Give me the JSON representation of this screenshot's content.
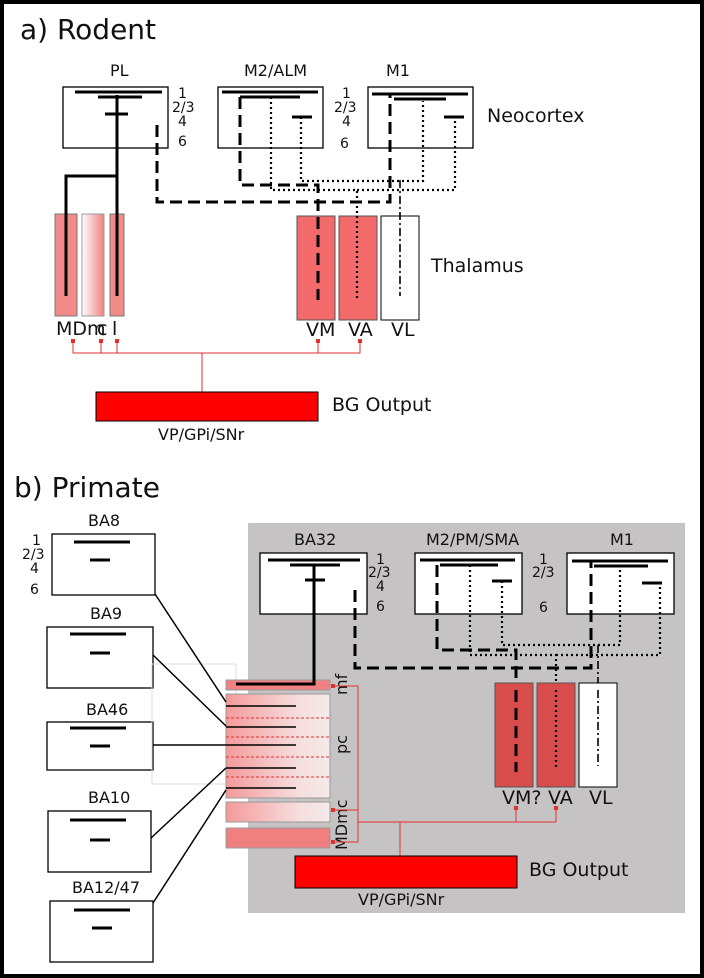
{
  "panels": {
    "rodent": {
      "title": "a) Rodent",
      "areas": [
        "PL",
        "M2/ALM",
        "M1"
      ],
      "layers": [
        "1",
        "2/3",
        "4",
        "6"
      ],
      "cortex_label": "Neocortex",
      "thalamus_label": "Thalamus",
      "thalamic_nuclei": [
        "MDm",
        "c",
        "l",
        "VM",
        "VA",
        "VL"
      ],
      "bg_output": "BG Output",
      "bg_nuclei": "VP/GPi/SNr"
    },
    "primate": {
      "title": "b) Primate",
      "prefrontal_areas": [
        "BA8",
        "BA9",
        "BA46",
        "BA10",
        "BA12/47"
      ],
      "areas": [
        "BA32",
        "M2/PM/SMA",
        "M1"
      ],
      "layers": [
        "1",
        "2/3",
        "4",
        "6"
      ],
      "md_subdivisions": [
        "mf",
        "pc",
        "MDmc"
      ],
      "thalamic_nuclei": [
        "VM?",
        "VA",
        "VL"
      ],
      "bg_output": "BG Output",
      "bg_nuclei": "VP/GPi/SNr"
    }
  },
  "colors": {
    "thalamus_red": "#f26a6a",
    "thalamus_red_primate": "#d94c4c",
    "bg_output_red": "#ff0000",
    "wire_red": "#e03030",
    "grey_box": "#c6c3c4"
  }
}
